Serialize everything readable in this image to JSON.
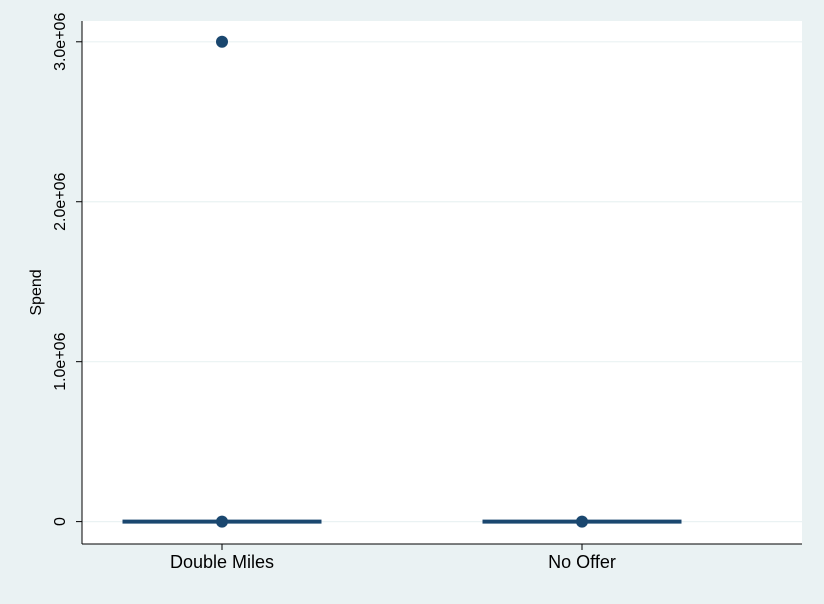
{
  "chart_data": {
    "type": "box",
    "title": "",
    "xlabel": "",
    "ylabel": "Spend",
    "ylim": [
      -140000,
      3130000
    ],
    "grid": true,
    "y_ticks": [
      {
        "value": 0,
        "label": "0"
      },
      {
        "value": 1000000,
        "label": "1.0e+06"
      },
      {
        "value": 2000000,
        "label": "2.0e+06"
      },
      {
        "value": 3000000,
        "label": "3.0e+06"
      }
    ],
    "categories": [
      "Double Miles",
      "No Offer"
    ],
    "boxes": [
      {
        "category": "Double Miles",
        "median": 0,
        "q1": 0,
        "q3": 0,
        "whisker_low": 0,
        "whisker_high": 0,
        "outliers": [
          0,
          3000000
        ]
      },
      {
        "category": "No Offer",
        "median": 0,
        "q1": 0,
        "q3": 0,
        "whisker_low": 0,
        "whisker_high": 0,
        "outliers": [
          0
        ]
      }
    ],
    "colors": {
      "background": "#eaf2f3",
      "plot_background": "#ffffff",
      "grid": "#eaf2f3",
      "box": "#1a476f",
      "axis": "#000000"
    }
  }
}
